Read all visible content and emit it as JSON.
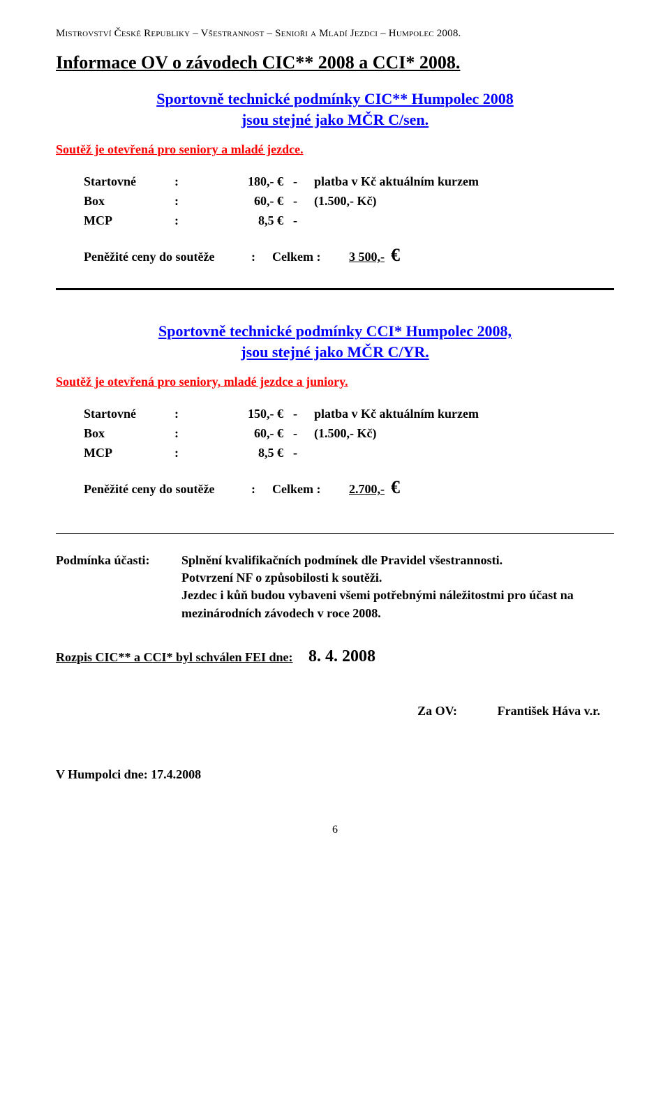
{
  "header": {
    "left": "Mistrovství České Republiky",
    "sep1": "–",
    "mid": "Všestrannost",
    "sep2": "–",
    "right": "Senioři a Mladí Jezdci",
    "sep3": "–",
    "place": "Humpolec 2008."
  },
  "title1": "Informace OV o závodech CIC** 2008 a CCI* 2008.",
  "cic": {
    "heading_l1": "Sportovně technické podmínky CIC** Humpolec 2008",
    "heading_l2": "jsou stejné jako MČR C/sen.",
    "open_for": "Soutěž je otevřená pro seniory a mladé jezdce.",
    "fees": {
      "startovne": {
        "label": "Startovné",
        "amount": "180,- €",
        "dash": "-",
        "note": "platba v Kč aktuálním kurzem"
      },
      "box": {
        "label": "Box",
        "amount": "60,- €",
        "dash": "-",
        "note": "(1.500,- Kč)"
      },
      "mcp": {
        "label": "MCP",
        "amount": "8,5 €",
        "dash": "-",
        "note": ""
      }
    },
    "prize": {
      "label": "Peněžité ceny do soutěže",
      "colon": ":",
      "celkem": "Celkem :",
      "amount": "3 500,-",
      "euro": "€"
    }
  },
  "cci": {
    "heading_l1": "Sportovně technické podmínky CCI* Humpolec 2008,",
    "heading_l2": "jsou stejné jako MČR C/YR.",
    "open_for": "Soutěž je otevřená pro seniory, mladé jezdce a juniory.",
    "fees": {
      "startovne": {
        "label": "Startovné",
        "amount": "150,- €",
        "dash": "-",
        "note": "platba v Kč aktuálním kurzem"
      },
      "box": {
        "label": "Box",
        "amount": "60,- €",
        "dash": "-",
        "note": "(1.500,- Kč)"
      },
      "mcp": {
        "label": "MCP",
        "amount": "8,5 €",
        "dash": "-",
        "note": ""
      }
    },
    "prize": {
      "label": "Peněžité ceny do soutěže",
      "colon": ":",
      "celkem": "Celkem :",
      "amount": "2.700,-",
      "euro": "€"
    }
  },
  "condition": {
    "label": "Podmínka účasti:",
    "line1": "Splnění kvalifikačních podmínek dle Pravidel všestrannosti.",
    "line2": "Potvrzení NF o způsobilosti k soutěži.",
    "line3": "Jezdec i kůň budou vybaveni všemi potřebnými náležitostmi pro účast na mezinárodních závodech v roce 2008."
  },
  "approval": {
    "text": "Rozpis CIC** a CCI* byl schválen FEI dne:",
    "date": "8. 4. 2008"
  },
  "signer": {
    "label": "Za OV:",
    "name": "František Háva v.r."
  },
  "place_date": "V Humpolci dne: 17.4.2008",
  "page": "6"
}
